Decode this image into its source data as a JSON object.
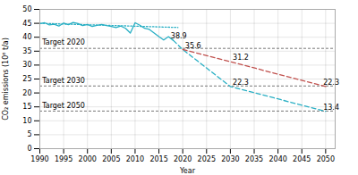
{
  "chart_data": {
    "type": "line",
    "xlabel": "Year",
    "ylabel": "CO₂ emissions (10⁶ t/a)",
    "xlim": [
      1990,
      2052
    ],
    "ylim": [
      0,
      50
    ],
    "xticks": [
      1990,
      1995,
      2000,
      2005,
      2010,
      2015,
      2020,
      2025,
      2030,
      2035,
      2040,
      2045,
      2050
    ],
    "yticks": [
      0,
      5,
      10,
      15,
      20,
      25,
      30,
      35,
      40,
      45,
      50
    ],
    "grid": true,
    "series": [
      {
        "color": "#29afc4",
        "line_style": "solid",
        "x": [
          1990,
          1991,
          1992,
          1993,
          1994,
          1995,
          1996,
          1997,
          1998,
          1999,
          2000,
          2001,
          2002,
          2003,
          2004,
          2005,
          2006,
          2007,
          2008,
          2009,
          2010,
          2011,
          2012,
          2013,
          2014,
          2015,
          2016,
          2017,
          2018
        ],
        "values": [
          44.8,
          45.2,
          44.4,
          44.7,
          44.0,
          45.1,
          44.5,
          45.3,
          44.9,
          44.2,
          44.6,
          43.9,
          44.3,
          44.6,
          44.2,
          43.9,
          43.5,
          44.0,
          43.2,
          41.5,
          45.2,
          44.3,
          43.2,
          42.8,
          41.5,
          40.2,
          39.0,
          40.2,
          38.9
        ]
      },
      {
        "color": "#29afc4",
        "line_style": "dotted",
        "x": [
          1990,
          2019
        ],
        "values": [
          45.0,
          43.5
        ]
      },
      {
        "color": "#29afc4",
        "line_style": "dashed",
        "x": [
          2018,
          2020,
          2030,
          2050
        ],
        "values": [
          38.9,
          35.6,
          22.3,
          13.4
        ]
      },
      {
        "color": "#c0504d",
        "line_style": "dashed",
        "x": [
          2020,
          2030,
          2050
        ],
        "values": [
          35.6,
          31.2,
          22.3
        ]
      }
    ],
    "hlines": [
      {
        "value": 36.0,
        "color": "#555555",
        "line_style": "dashed"
      },
      {
        "value": 22.5,
        "color": "#555555",
        "line_style": "dashed"
      },
      {
        "value": 13.5,
        "color": "#555555",
        "line_style": "dashed"
      }
    ],
    "annotations": [
      {
        "text": "Target 2020",
        "x": 1990.5,
        "y": 37.2
      },
      {
        "text": "Target 2030",
        "x": 1990.5,
        "y": 23.7
      },
      {
        "text": "Target 2050",
        "x": 1990.5,
        "y": 14.7
      },
      {
        "text": "38.9",
        "x": 2017.5,
        "y": 39.5
      },
      {
        "text": "35.6",
        "x": 2020.5,
        "y": 36.2
      },
      {
        "text": "31.2",
        "x": 2030.5,
        "y": 31.8
      },
      {
        "text": "22.3",
        "x": 2030.5,
        "y": 22.9
      },
      {
        "text": "22.3",
        "x": 2049.5,
        "y": 22.9
      },
      {
        "text": "13.4",
        "x": 2049.5,
        "y": 14.0
      }
    ]
  }
}
